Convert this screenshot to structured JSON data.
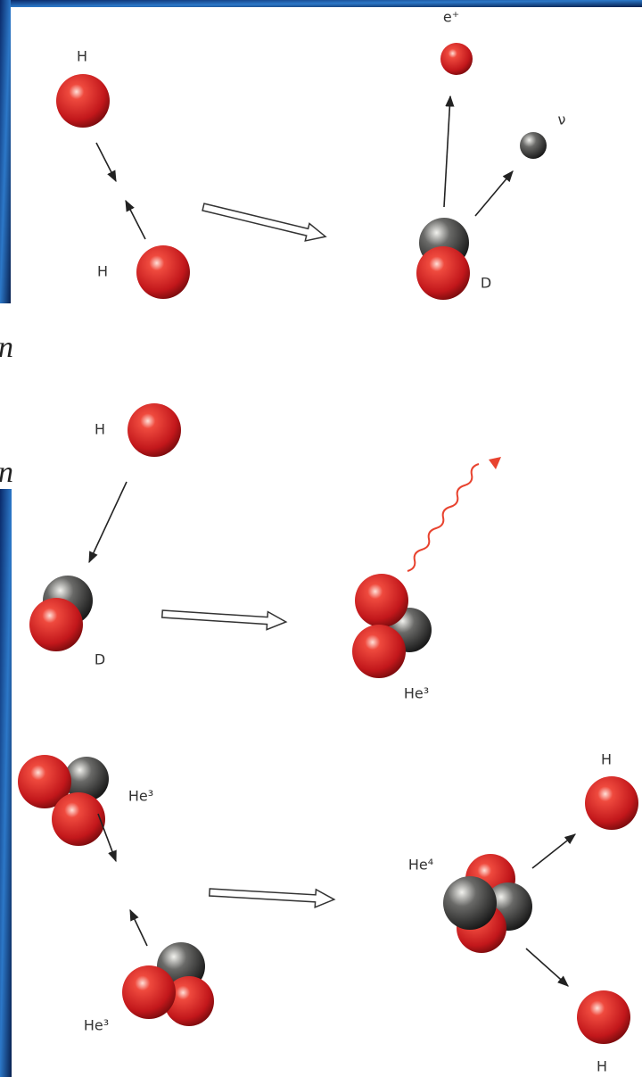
{
  "fragments": [
    "n",
    "n"
  ],
  "panels": [
    {
      "labels": [
        "H",
        "H",
        "e⁺",
        "ν",
        "D"
      ]
    },
    {
      "labels": [
        "H",
        "D",
        "He³"
      ]
    },
    {
      "labels": [
        "He³",
        "He³",
        "He⁴",
        "H",
        "H"
      ]
    }
  ]
}
